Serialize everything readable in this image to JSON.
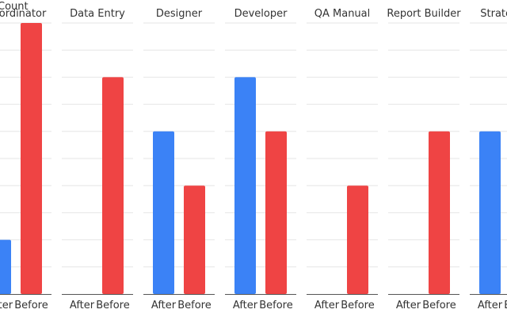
{
  "chart_data": {
    "type": "bar",
    "layout": "faceted",
    "ylabel": "Count",
    "ylim": [
      0,
      10
    ],
    "categories": [
      "After",
      "Before"
    ],
    "colors": {
      "After": "#3b82f6",
      "Before": "#ef4444"
    },
    "panels": [
      {
        "title": "Coordinator",
        "values": [
          2,
          10
        ]
      },
      {
        "title": "Data Entry",
        "values": [
          0,
          8
        ]
      },
      {
        "title": "Designer",
        "values": [
          6,
          4
        ]
      },
      {
        "title": "Developer",
        "values": [
          8,
          6
        ]
      },
      {
        "title": "QA Manual",
        "values": [
          0,
          4
        ]
      },
      {
        "title": "Report Builder",
        "values": [
          0,
          6
        ]
      },
      {
        "title": "Strategist",
        "values": [
          6,
          0
        ]
      }
    ]
  }
}
